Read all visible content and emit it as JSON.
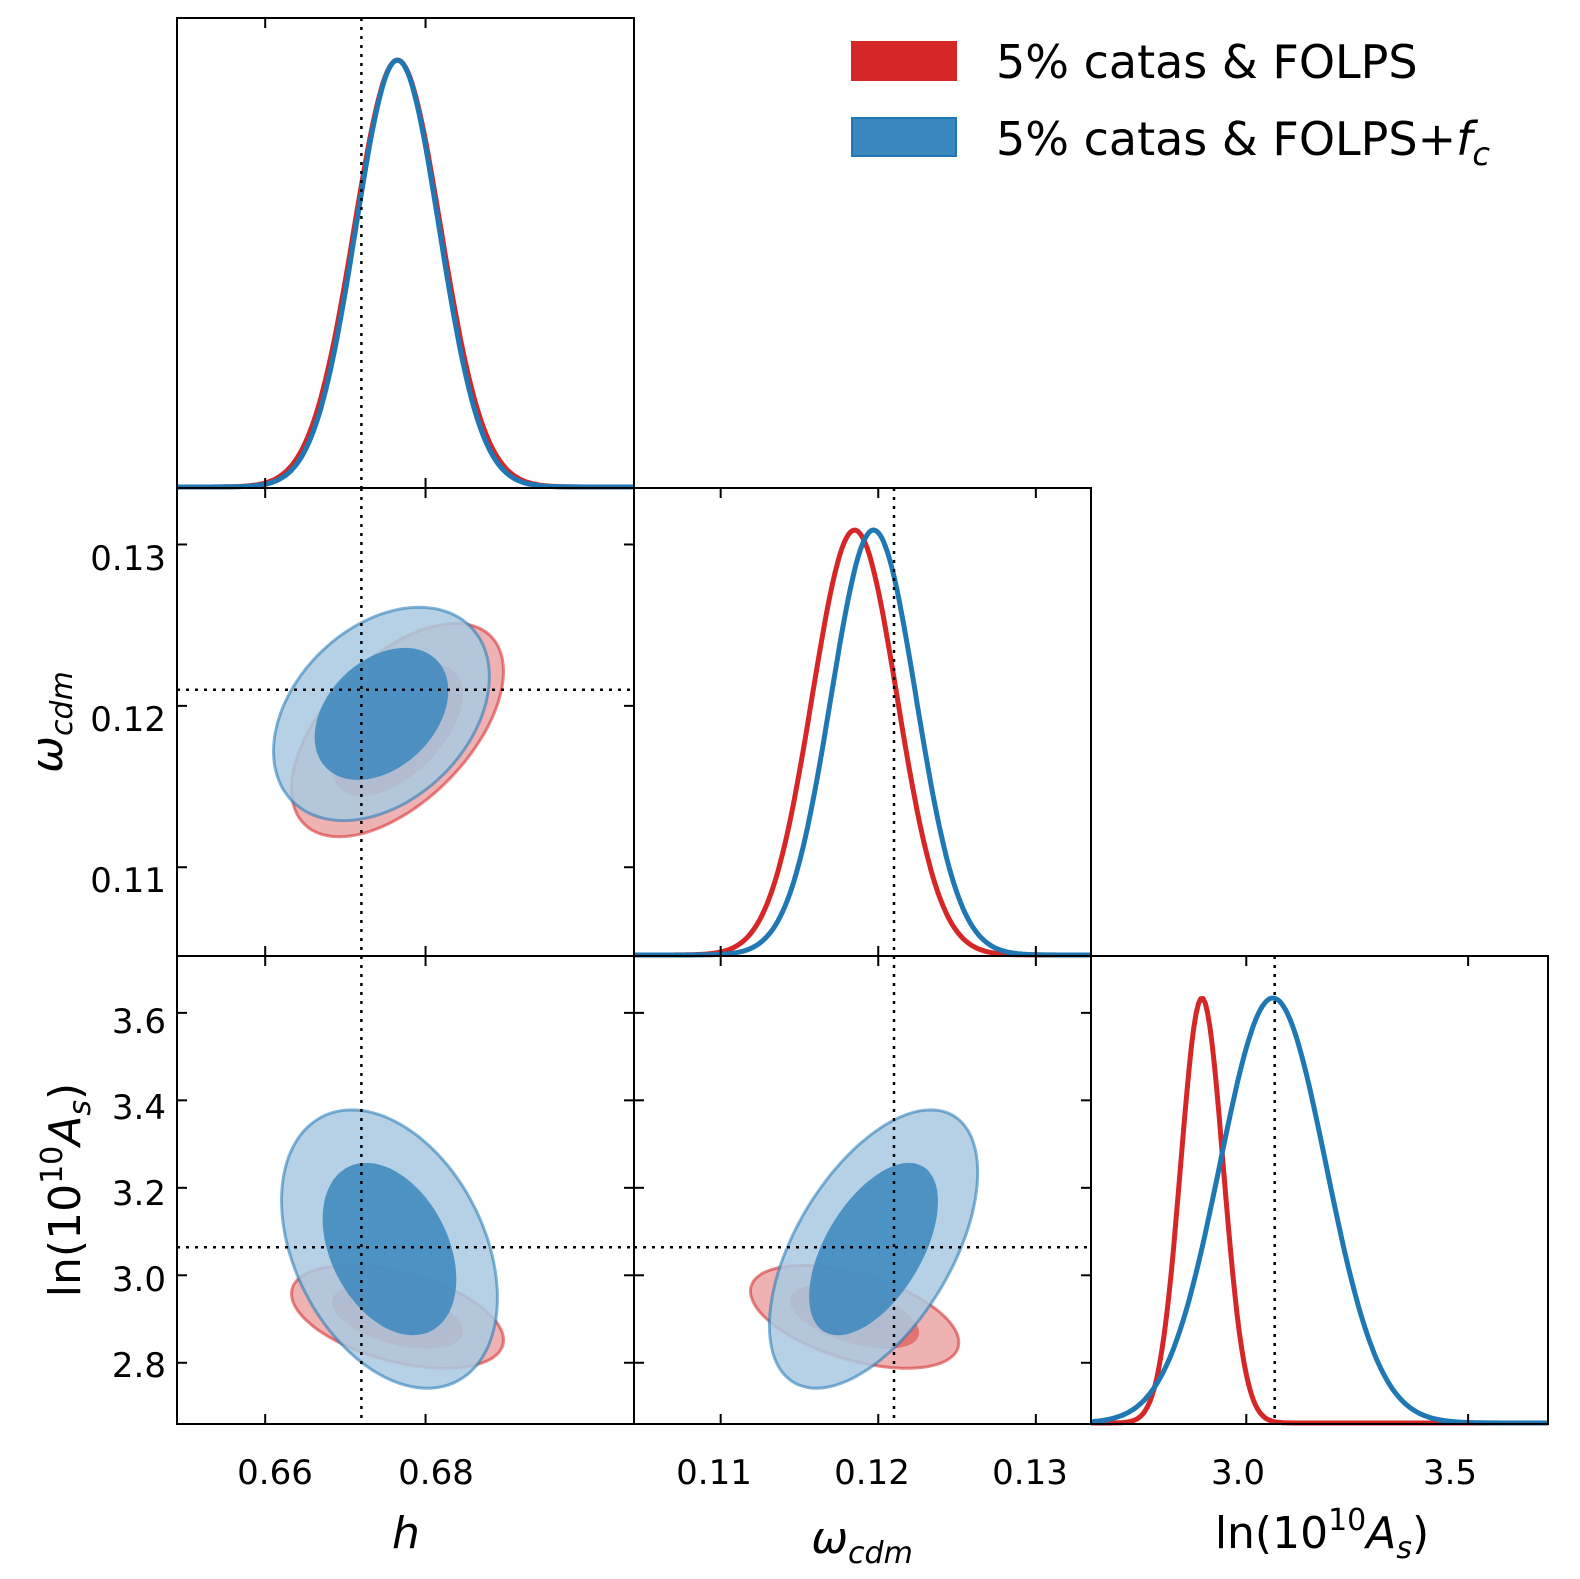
{
  "colors": {
    "red": "#d62728",
    "blue": "#1f77b4",
    "red_fill_outer": "#eca4a5",
    "red_fill_inner": "#e26869",
    "blue_fill_outer": "#a9c9e1",
    "blue_fill_inner": "#3a87bd"
  },
  "chart_data": {
    "type": "triangle (corner) plot of posterior distributions",
    "parameters": [
      {
        "key": "h",
        "label": "h",
        "range": [
          0.649,
          0.706
        ],
        "ticks": [
          "0.66",
          "0.68"
        ],
        "tick_values": [
          0.66,
          0.68
        ],
        "truth": 0.672
      },
      {
        "key": "omega_cdm",
        "label_main": "ω",
        "label_sub": "cdm",
        "range": [
          0.1045,
          0.1335
        ],
        "ticks": [
          "0.11",
          "0.12",
          "0.13"
        ],
        "tick_values": [
          0.11,
          0.12,
          0.13
        ],
        "truth": 0.121
      },
      {
        "key": "lnAs",
        "label_main": "ln(10",
        "label_sup": "10",
        "label_var": "A",
        "label_sub": "s",
        "range": [
          2.66,
          3.73
        ],
        "ticks": [
          "2.8",
          "3.0",
          "3.2",
          "3.4",
          "3.6"
        ],
        "tick_values": [
          2.8,
          3.0,
          3.2,
          3.4,
          3.6
        ],
        "ticks_x": [
          "3.0",
          "3.5"
        ],
        "tick_values_x": [
          3.0,
          3.5
        ],
        "xrange": [
          2.65,
          3.68
        ],
        "truth": 3.064
      }
    ],
    "legend": {
      "placement": "top-right",
      "entries": [
        {
          "label": "5% catas & FOLPS",
          "color": "#d62728"
        },
        {
          "label_main": "5% catas & FOLPS+",
          "label_var": "f",
          "label_sub": "c",
          "color": "#1f77b4"
        }
      ]
    },
    "series": [
      {
        "name": "5% catas & FOLPS",
        "color": "#d62728",
        "marginals": {
          "h": {
            "mean": 0.6765,
            "sigma": 0.0054
          },
          "omega_cdm": {
            "mean": 0.1185,
            "sigma": 0.0027
          },
          "lnAs": {
            "mean": 2.9,
            "sigma": 0.048
          }
        },
        "contours_68_95": {
          "h-omega_cdm": {
            "mean": [
              0.6765,
              0.1185
            ],
            "sigma": [
              0.0054,
              0.0027
            ],
            "corr": 0.55
          },
          "h-lnAs": {
            "mean": [
              0.6765,
              2.905
            ],
            "sigma": [
              0.0054,
              0.048
            ],
            "corr": -0.45
          },
          "omega_cdm-lnAs": {
            "mean": [
              0.1185,
              2.905
            ],
            "sigma": [
              0.0027,
              0.048
            ],
            "corr": -0.5
          }
        }
      },
      {
        "name": "5% catas & FOLPS+f_c",
        "color": "#1f77b4",
        "marginals": {
          "h": {
            "mean": 0.6765,
            "sigma": 0.0052
          },
          "omega_cdm": {
            "mean": 0.1197,
            "sigma": 0.0027
          },
          "lnAs": {
            "mean": 3.06,
            "sigma": 0.12
          }
        },
        "contours_68_95": {
          "h-omega_cdm": {
            "mean": [
              0.6745,
              0.1195
            ],
            "sigma": [
              0.0055,
              0.0027
            ],
            "corr": 0.35
          },
          "h-lnAs": {
            "mean": [
              0.6755,
              3.06
            ],
            "sigma": [
              0.0055,
              0.13
            ],
            "corr": -0.35
          },
          "omega_cdm-lnAs": {
            "mean": [
              0.1197,
              3.06
            ],
            "sigma": [
              0.0027,
              0.13
            ],
            "corr": 0.55
          }
        }
      }
    ],
    "grid": false
  }
}
